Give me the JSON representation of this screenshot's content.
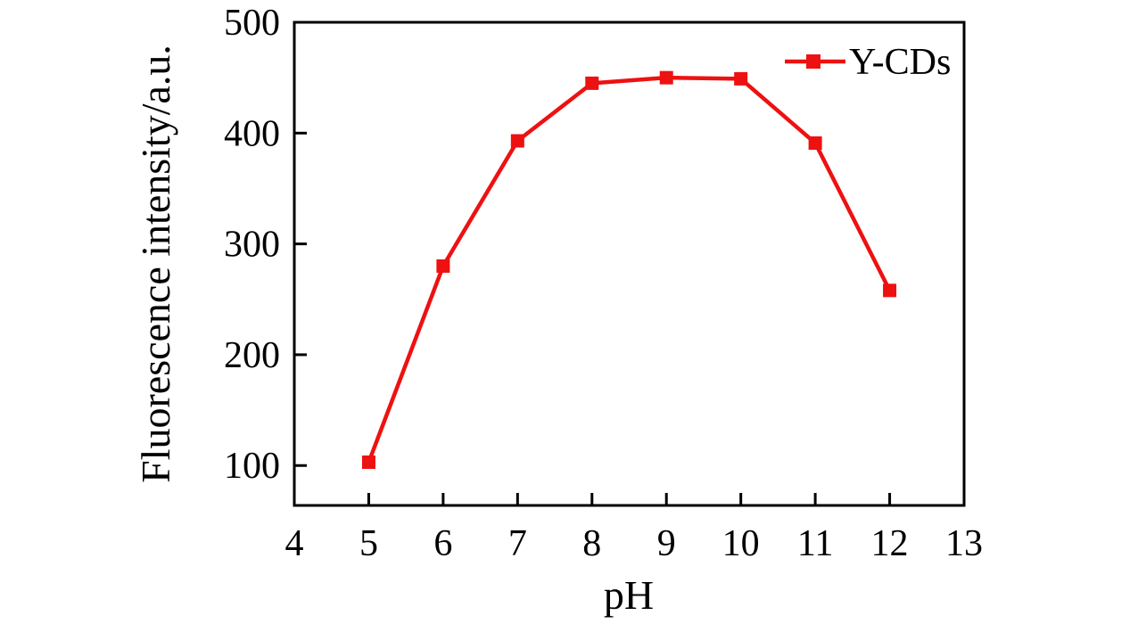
{
  "figure": {
    "background": "#ffffff"
  },
  "chart_data": {
    "type": "line",
    "title": "",
    "xlabel": "pH",
    "ylabel": "Fluorescence intensity/a.u.",
    "x": [
      5,
      6,
      7,
      8,
      9,
      10,
      11,
      12
    ],
    "series": [
      {
        "name": "Y-CDs",
        "values": [
          103,
          280,
          393,
          445,
          450,
          449,
          391,
          258
        ],
        "color": "#ee1111",
        "marker": "square",
        "marker_size": 15,
        "line_width": 4.5
      }
    ],
    "xlim": [
      4,
      13
    ],
    "ylim": [
      64,
      500
    ],
    "x_ticks": [
      4,
      5,
      6,
      7,
      8,
      9,
      10,
      11,
      12,
      13
    ],
    "y_ticks": [
      100,
      200,
      300,
      400,
      500
    ],
    "grid": false,
    "legend_position": "top-right"
  },
  "colors": {
    "axis": "#000000",
    "text": "#000000"
  }
}
